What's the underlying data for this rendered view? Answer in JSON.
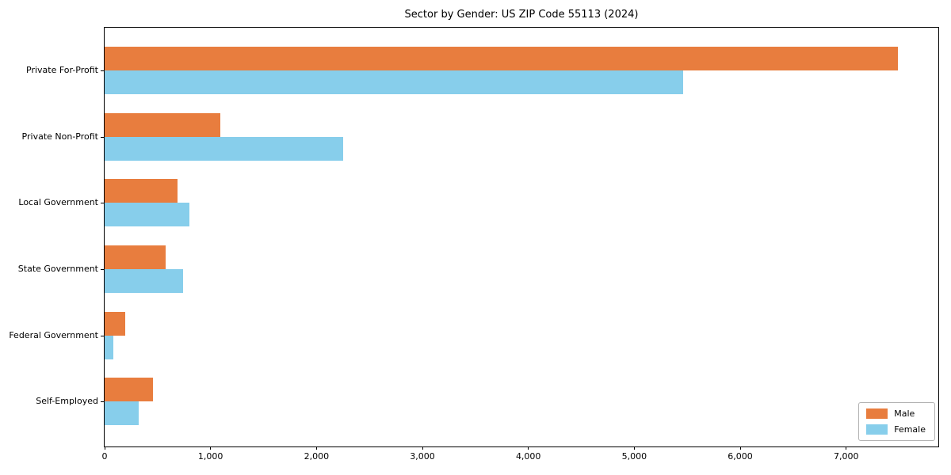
{
  "chart_data": {
    "type": "bar",
    "orientation": "horizontal",
    "title": "Sector by Gender: US ZIP Code 55113 (2024)",
    "categories": [
      "Private For-Profit",
      "Private Non-Profit",
      "Local Government",
      "State Government",
      "Federal Government",
      "Self-Employed"
    ],
    "series": [
      {
        "name": "Male",
        "color": "#e87d3e",
        "values": [
          7490,
          1090,
          690,
          575,
          195,
          455
        ]
      },
      {
        "name": "Female",
        "color": "#87ceeb",
        "values": [
          5460,
          2250,
          800,
          740,
          85,
          320
        ]
      }
    ],
    "xlabel": "",
    "ylabel": "",
    "xlim": [
      0,
      7870
    ],
    "xticks": [
      0,
      1000,
      2000,
      3000,
      4000,
      5000,
      6000,
      7000
    ],
    "xtick_labels": [
      "0",
      "1,000",
      "2,000",
      "3,000",
      "4,000",
      "5,000",
      "6,000",
      "7,000"
    ],
    "grid": false,
    "legend": {
      "position": "lower-right",
      "items": [
        "Male",
        "Female"
      ]
    },
    "colors": {
      "male": "#e87d3e",
      "female": "#87ceeb",
      "spine": "#000000",
      "text": "#000000",
      "legend_border": "#b3b3b3"
    }
  }
}
